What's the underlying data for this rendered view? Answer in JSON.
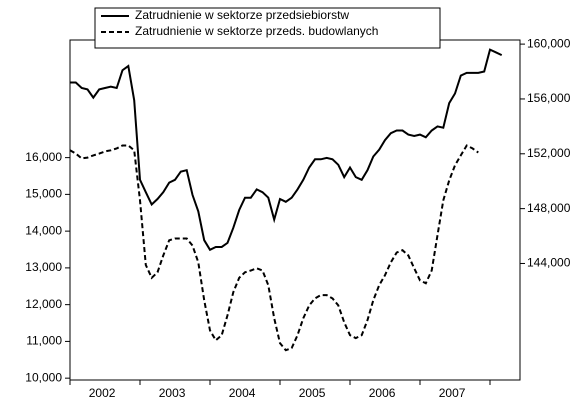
{
  "chart_data": {
    "type": "line",
    "categories": [
      null,
      null,
      null,
      null,
      null,
      null,
      "2002",
      null,
      null,
      null,
      null,
      null,
      null,
      null,
      null,
      null,
      null,
      null,
      "2003",
      null,
      null,
      null,
      null,
      null,
      null,
      null,
      null,
      null,
      null,
      null,
      "2004",
      null,
      null,
      null,
      null,
      null,
      null,
      null,
      null,
      null,
      null,
      null,
      "2005",
      null,
      null,
      null,
      null,
      null,
      null,
      null,
      null,
      null,
      null,
      null,
      "2006",
      null,
      null,
      null,
      null,
      null,
      null,
      null,
      null,
      null,
      null,
      null,
      "2007",
      null,
      null,
      null,
      null,
      null,
      null,
      null,
      null
    ],
    "series": [
      {
        "name": "Zatrudnienie w sektorze przedsiebiorstw",
        "color": "#000000",
        "line_style": "solid",
        "axis": "y2",
        "values": [
          157200,
          157200,
          156800,
          156700,
          156100,
          156700,
          156800,
          156900,
          156800,
          158100,
          158400,
          155900,
          150100,
          149200,
          148300,
          148700,
          149200,
          149900,
          150100,
          150700,
          150800,
          149000,
          147800,
          145700,
          145000,
          145200,
          145200,
          145500,
          146600,
          147900,
          148800,
          148800,
          149400,
          149200,
          148800,
          147200,
          148700,
          148500,
          148800,
          149400,
          150100,
          151000,
          151600,
          151600,
          151700,
          151600,
          151200,
          150300,
          151000,
          150300,
          150100,
          150800,
          151800,
          152300,
          153000,
          153500,
          153700,
          153700,
          153400,
          153300,
          153400,
          153200,
          153700,
          154000,
          153900,
          155700,
          156400,
          157700,
          157900,
          157900,
          157900,
          158000,
          159600,
          159400,
          159200
        ]
      },
      {
        "name": "Zatrudnienie w sektorze przeds. budowlanych",
        "color": "#000000",
        "line_style": "dashed",
        "values": [
          16200,
          16110,
          15980,
          16000,
          16060,
          16110,
          16170,
          16200,
          16250,
          16330,
          16330,
          16200,
          14840,
          13080,
          12730,
          12880,
          13340,
          13750,
          13800,
          13800,
          13800,
          13610,
          13150,
          12120,
          11300,
          11030,
          11170,
          11710,
          12340,
          12730,
          12880,
          12930,
          12990,
          12930,
          12530,
          11630,
          10950,
          10760,
          10820,
          11170,
          11630,
          11980,
          12170,
          12260,
          12260,
          12170,
          11980,
          11520,
          11170,
          11090,
          11170,
          11580,
          12120,
          12530,
          12800,
          13150,
          13420,
          13480,
          13340,
          12990,
          12660,
          12580,
          12930,
          13890,
          14840,
          15380,
          15790,
          16060,
          16330,
          16250,
          16140,
          null,
          null,
          null,
          null
        ]
      }
    ],
    "ylim": [
      9950,
      19200
    ],
    "yticks": [
      {
        "value": 10000,
        "label": "10,000"
      },
      {
        "value": 11000,
        "label": "11,000"
      },
      {
        "value": 12000,
        "label": "12,000"
      },
      {
        "value": 13000,
        "label": "13,000"
      },
      {
        "value": 14000,
        "label": "14,000"
      },
      {
        "value": 15000,
        "label": "15,000"
      },
      {
        "value": 16000,
        "label": "16,000"
      }
    ],
    "y2lim": [
      135500,
      160300
    ],
    "y2ticks": [
      {
        "value": 144000,
        "label": "144,000"
      },
      {
        "value": 148000,
        "label": "148,000"
      },
      {
        "value": 152000,
        "label": "152,000"
      },
      {
        "value": 156000,
        "label": "156,000"
      },
      {
        "value": 160000,
        "label": "160,000"
      }
    ],
    "legend": "top-left",
    "grid": false
  }
}
